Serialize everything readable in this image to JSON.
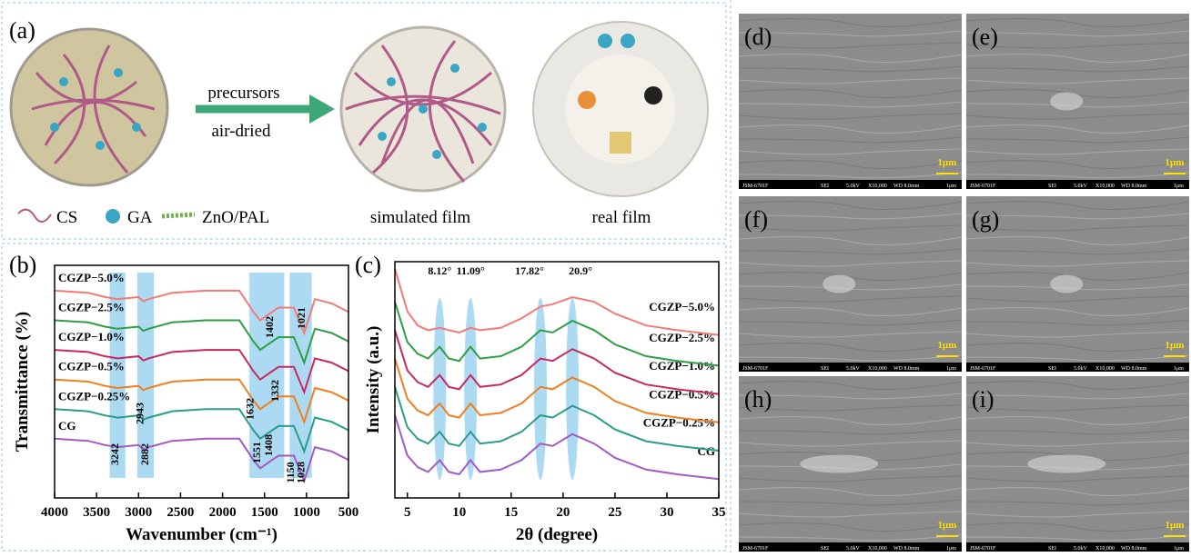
{
  "panel_a": {
    "label": "(a)",
    "arrow_labels": [
      "precursors",
      "air-dried"
    ],
    "legend": [
      "CS",
      "GA",
      "ZnO/PAL"
    ],
    "captions": [
      "simulated film",
      "real film"
    ]
  },
  "chart_data": [
    {
      "type": "line",
      "label": "(b)",
      "xlabel": "Wavenumber (cm⁻¹)",
      "ylabel": "Transmittance (%)",
      "x": [
        4000,
        3600,
        3400,
        3250,
        3000,
        2943,
        2882,
        2600,
        2200,
        1800,
        1632,
        1551,
        1408,
        1332,
        1150,
        1028,
        900,
        700,
        500
      ],
      "xlim": [
        4000,
        500
      ],
      "xticks": [
        4000,
        3500,
        3000,
        2500,
        2000,
        1500,
        1000,
        500
      ],
      "ylim": [
        -10,
        100
      ],
      "highlight_ranges": [
        [
          3344,
          3157
        ],
        [
          3015,
          2818
        ],
        [
          1680,
          1265
        ],
        [
          1200,
          937
        ]
      ],
      "peak_labels": [
        3242,
        2943,
        2882,
        1632,
        1551,
        1408,
        1402,
        1332,
        1150,
        1028,
        1021
      ],
      "series": [
        {
          "name": "CG",
          "color": "#a35bc4",
          "values": [
            18,
            17,
            15,
            14,
            15,
            13,
            14,
            17,
            18,
            18,
            8,
            4,
            8,
            10,
            10,
            -2,
            14,
            12,
            8
          ]
        },
        {
          "name": "CGZP−0.25%",
          "color": "#2a9d8a",
          "values": [
            32,
            31,
            29,
            28,
            29,
            27,
            28,
            31,
            32,
            32,
            22,
            18,
            22,
            24,
            24,
            12,
            28,
            26,
            22
          ]
        },
        {
          "name": "CGZP−0.5%",
          "color": "#f07f1e",
          "values": [
            46,
            45,
            43,
            42,
            43,
            41,
            42,
            45,
            46,
            46,
            36,
            32,
            36,
            38,
            38,
            26,
            42,
            40,
            36
          ]
        },
        {
          "name": "CGZP−1.0%",
          "color": "#c8285e",
          "values": [
            60,
            59,
            57,
            56,
            57,
            55,
            56,
            59,
            60,
            60,
            50,
            46,
            50,
            52,
            52,
            40,
            56,
            54,
            50
          ]
        },
        {
          "name": "CGZP−2.5%",
          "color": "#2f9e44",
          "values": [
            74,
            73,
            71,
            70,
            71,
            69,
            70,
            73,
            74,
            74,
            64,
            60,
            64,
            66,
            66,
            54,
            70,
            68,
            64
          ]
        },
        {
          "name": "CGZP−5.0%",
          "color": "#f27b78",
          "values": [
            88,
            87,
            85,
            84,
            85,
            83,
            84,
            87,
            88,
            88,
            78,
            74,
            78,
            80,
            80,
            68,
            84,
            82,
            78
          ]
        }
      ]
    },
    {
      "type": "line",
      "label": "(c)",
      "xlabel": "2θ (degree)",
      "ylabel": "Intensity (a.u.)",
      "x": [
        3.8,
        5,
        6,
        7,
        8.12,
        9,
        10,
        11.09,
        12,
        14,
        16,
        17.82,
        19,
        20.9,
        23,
        25,
        28,
        31,
        35
      ],
      "xlim": [
        3.8,
        35
      ],
      "xticks": [
        5,
        10,
        15,
        20,
        25,
        30,
        35
      ],
      "ylim": [
        0,
        100
      ],
      "peak_labels": [
        {
          "value": 8.12,
          "label": "8.12°"
        },
        {
          "value": 11.09,
          "label": "11.09°"
        },
        {
          "value": 17.82,
          "label": "17.82°"
        },
        {
          "value": 20.9,
          "label": "20.9°"
        }
      ],
      "series": [
        {
          "name": "CG",
          "color": "#a35bc4",
          "values": [
            35,
            18,
            13,
            11,
            16,
            11,
            10,
            16,
            11,
            12,
            16,
            23,
            22,
            27,
            23,
            17,
            12,
            10,
            8
          ]
        },
        {
          "name": "CGZP−0.25%",
          "color": "#2a9d8a",
          "values": [
            47,
            30,
            25,
            23,
            28,
            23,
            22,
            28,
            23,
            24,
            28,
            35,
            34,
            39,
            35,
            29,
            24,
            22,
            20
          ]
        },
        {
          "name": "CGZP−0.5%",
          "color": "#f07f1e",
          "values": [
            59,
            42,
            37,
            35,
            40,
            35,
            34,
            40,
            35,
            36,
            40,
            47,
            46,
            51,
            47,
            41,
            36,
            34,
            32
          ]
        },
        {
          "name": "CGZP−1.0%",
          "color": "#c8285e",
          "values": [
            71,
            54,
            49,
            47,
            52,
            47,
            46,
            52,
            47,
            48,
            52,
            59,
            58,
            63,
            59,
            53,
            48,
            46,
            44
          ]
        },
        {
          "name": "CGZP−2.5%",
          "color": "#2f9e44",
          "values": [
            83,
            66,
            61,
            59,
            64,
            59,
            58,
            64,
            59,
            60,
            64,
            71,
            70,
            75,
            71,
            65,
            60,
            58,
            56
          ]
        },
        {
          "name": "CGZP−5.0%",
          "color": "#f27b78",
          "values": [
            97,
            79,
            73,
            71,
            72,
            71,
            70,
            72,
            71,
            72,
            76,
            81,
            82,
            85,
            83,
            78,
            73,
            71,
            69
          ]
        }
      ]
    }
  ],
  "sem_panels": [
    "(d)",
    "(e)",
    "(f)",
    "(g)",
    "(h)",
    "(i)"
  ],
  "sem_scale": "1μm",
  "sem_footer": [
    "JSM-6701F",
    "SEI",
    "5.0kV",
    "X10,000",
    "WD 8.0mm",
    "1μm"
  ]
}
